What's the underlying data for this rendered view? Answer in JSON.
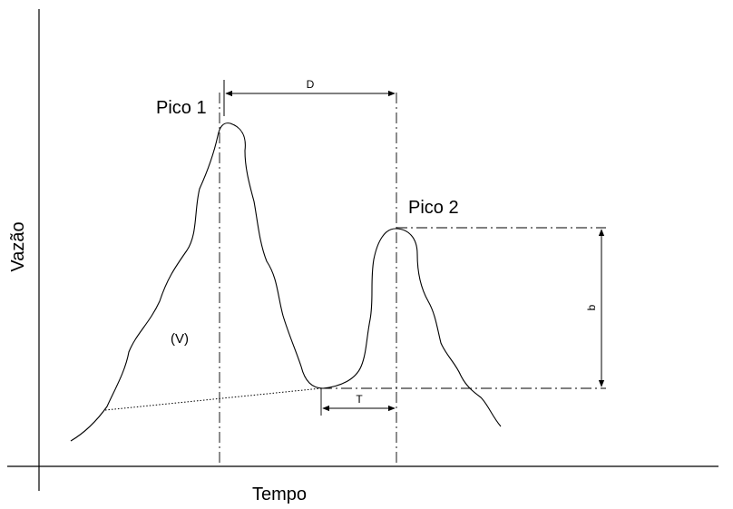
{
  "axes": {
    "x_label": "Tempo",
    "y_label": "Vazão"
  },
  "peaks": {
    "peak1_label": "Pico 1",
    "peak2_label": "Pico 2"
  },
  "annotations": {
    "distance_label": "D",
    "interval_label": "T",
    "height_label": "b",
    "volume_label": "(V)"
  },
  "colors": {
    "line": "#000000",
    "background": "#ffffff"
  }
}
